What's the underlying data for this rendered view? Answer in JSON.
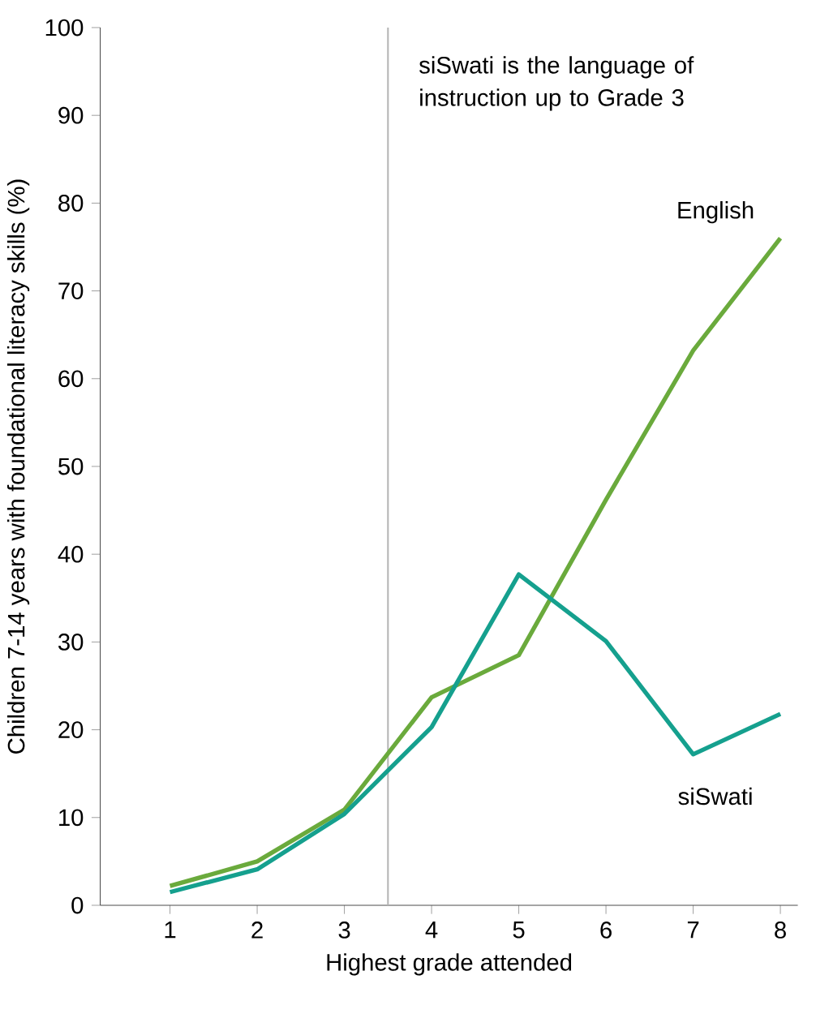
{
  "chart_data": {
    "type": "line",
    "xlabel": "Highest grade attended",
    "ylabel": "Children 7-14 years with foundational literacy skills (%)",
    "x": [
      1,
      2,
      3,
      4,
      5,
      6,
      7,
      8
    ],
    "series": [
      {
        "name": "English",
        "color": "#6aaa3c",
        "values": [
          2.2,
          5.0,
          10.9,
          23.7,
          28.5,
          46.2,
          63.2,
          76.0
        ]
      },
      {
        "name": "siSwati",
        "color": "#15a08e",
        "values": [
          1.5,
          4.1,
          10.4,
          20.3,
          37.7,
          30.1,
          17.2,
          21.8
        ]
      }
    ],
    "xlim": [
      0.2,
      8.2
    ],
    "xticks": [
      1,
      2,
      3,
      4,
      5,
      6,
      7,
      8
    ],
    "ylim": [
      0,
      100
    ],
    "yticks": [
      0,
      10,
      20,
      30,
      40,
      50,
      60,
      70,
      80,
      90,
      100
    ],
    "ref_lines": [
      {
        "axis": "x",
        "value": 3.5,
        "label": "siSwati is the language of instruction up to Grade 3",
        "color": "#b3b3b3"
      }
    ],
    "grid": false,
    "marker": "none",
    "line_style": "solid"
  }
}
